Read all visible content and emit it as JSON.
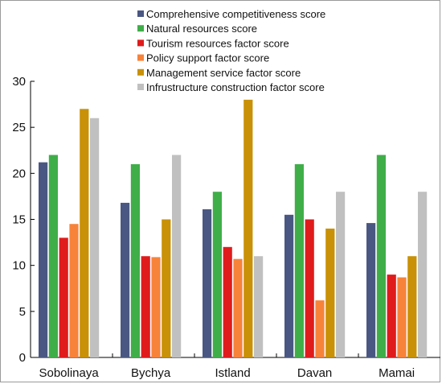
{
  "chart_data": {
    "type": "bar",
    "categories": [
      "Sobolinaya",
      "Bychya",
      "Istland",
      "Davan",
      "Mamai"
    ],
    "series": [
      {
        "name": "Comprehensive competitiveness score",
        "color": "#4a5782",
        "values": [
          21.2,
          16.8,
          16.1,
          15.5,
          14.6
        ]
      },
      {
        "name": "Natural resources score",
        "color": "#3fae49",
        "values": [
          22,
          21,
          18,
          21,
          22
        ]
      },
      {
        "name": "Tourism resources factor score",
        "color": "#e01b1b",
        "values": [
          13,
          11,
          12,
          15,
          9
        ]
      },
      {
        "name": "Policy support factor score",
        "color": "#f7833a",
        "values": [
          14.5,
          10.9,
          10.7,
          6.2,
          8.7
        ]
      },
      {
        "name": "Management service factor score",
        "color": "#c89107",
        "values": [
          27,
          15,
          28,
          14,
          11
        ]
      },
      {
        "name": "Infrustructure construction factor score",
        "color": "#c0c0c0",
        "values": [
          26,
          22,
          11,
          18,
          18
        ]
      }
    ],
    "yticks": [
      "0",
      "5",
      "10",
      "15",
      "20",
      "25",
      "30"
    ],
    "ylim": [
      0,
      30
    ],
    "legend_position": "top",
    "grid": false
  }
}
